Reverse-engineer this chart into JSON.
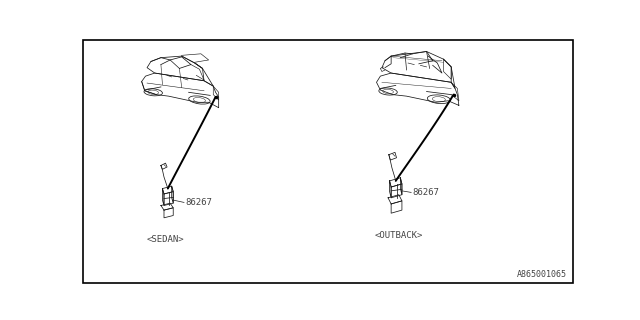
{
  "bg_color": "#ffffff",
  "border_color": "#000000",
  "line_color": "#1a1a1a",
  "thin_line": "#555555",
  "part_number": "86267",
  "sedan_label": "<SEDAN>",
  "outback_label": "<OUTBACK>",
  "diagram_id": "A865001065",
  "font_color": "#444444",
  "font_size": 6.5,
  "id_font_size": 6.0,
  "lw_car": 0.55,
  "lw_leader": 1.4,
  "lw_comp": 0.55
}
